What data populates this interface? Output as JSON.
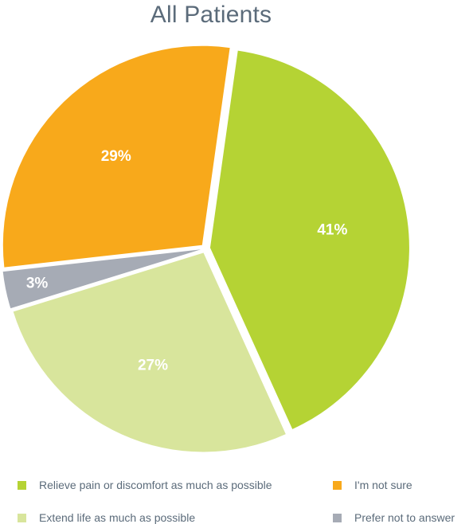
{
  "chart_data": {
    "type": "pie",
    "title": "All Patients",
    "slices": [
      {
        "label": "Relieve pain or discomfort as much as possible",
        "value": 41,
        "value_label": "41%",
        "color": "#b5d334"
      },
      {
        "label": "Extend life as much as possible",
        "value": 27,
        "value_label": "27%",
        "color": "#d8e59c"
      },
      {
        "label": "Prefer not to answer",
        "value": 3,
        "value_label": "3%",
        "color": "#a6abb5"
      },
      {
        "label": "I'm not sure",
        "value": 29,
        "value_label": "29%",
        "color": "#f8a91b"
      }
    ],
    "legend": {
      "placement": "bottom",
      "items": [
        {
          "label": "Relieve pain or discomfort as much as possible",
          "color": "#b5d334"
        },
        {
          "label": "I'm not sure",
          "color": "#f8a91b"
        },
        {
          "label": "Extend life as much as possible",
          "color": "#d8e59c"
        },
        {
          "label": "Prefer not to answer",
          "color": "#a6abb5"
        }
      ]
    }
  }
}
